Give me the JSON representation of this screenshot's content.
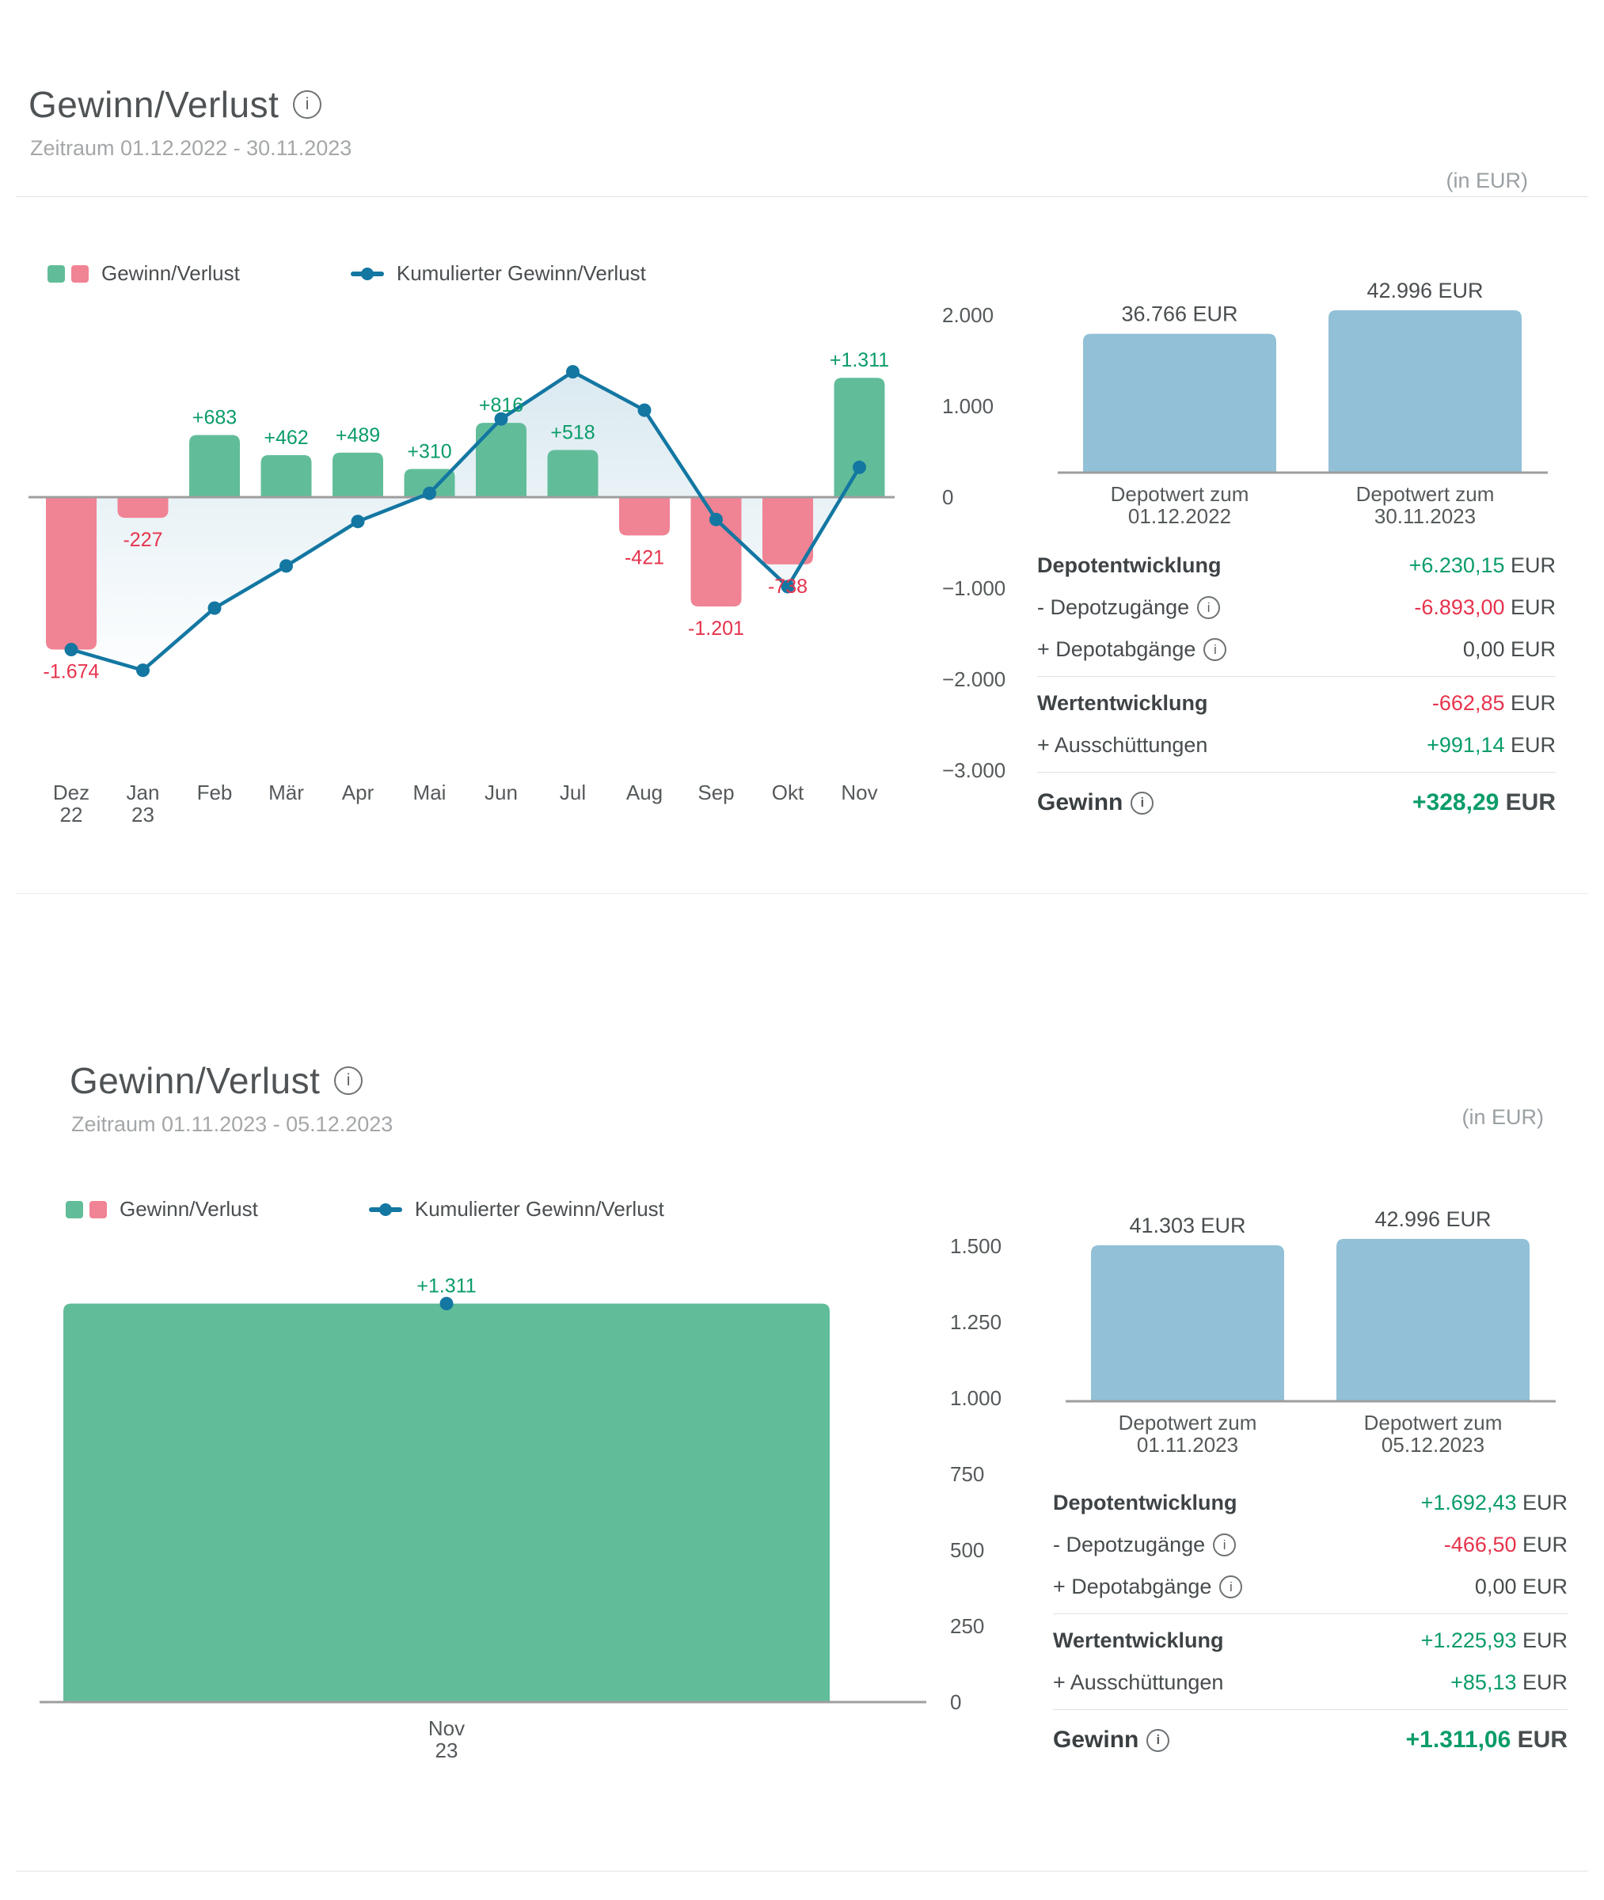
{
  "colors": {
    "bar_positive": "#61bd99",
    "bar_negative": "#f08394",
    "cumulative_line": "#1377a2",
    "depot_bar": "#92c0d6",
    "green_text": "#0a9c68",
    "red_text": "#e6334d",
    "axis_line": "#9e9e9e",
    "tick_text": "#55595b"
  },
  "sections": [
    {
      "header": {
        "title": "Gewinn/Verlust",
        "subtitle": "Zeitraum 01.12.2022 - 30.11.2023",
        "unit_note": "(in EUR)"
      },
      "legend": {
        "bars_label": "Gewinn/Verlust",
        "line_label": "Kumulierter Gewinn/Verlust"
      },
      "table": {
        "rows": [
          {
            "label": "Depotentwicklung",
            "bold": true,
            "value": "+6.230,15",
            "unit": " EUR",
            "color": "green"
          },
          {
            "label": "- Depotzugänge",
            "info": true,
            "value": "-6.893,00",
            "unit": " EUR",
            "color": "red"
          },
          {
            "label": "+ Depotabgänge",
            "info": true,
            "value": "0,00",
            "unit": " EUR",
            "color": "plain"
          },
          {
            "divider": true
          },
          {
            "label": "Wertentwicklung",
            "bold": true,
            "value": "-662,85",
            "unit": " EUR",
            "color": "red"
          },
          {
            "label": "+ Ausschüttungen",
            "value": "+991,14",
            "unit": " EUR",
            "color": "green"
          },
          {
            "divider": true
          },
          {
            "label": "Gewinn",
            "info": true,
            "gewinn": true,
            "value": "+328,29",
            "unit": " EUR",
            "color": "green"
          }
        ]
      }
    },
    {
      "header": {
        "title": "Gewinn/Verlust",
        "subtitle": "Zeitraum 01.11.2023 - 05.12.2023",
        "unit_note": "(in EUR)"
      },
      "legend": {
        "bars_label": "Gewinn/Verlust",
        "line_label": "Kumulierter Gewinn/Verlust"
      },
      "table": {
        "rows": [
          {
            "label": "Depotentwicklung",
            "bold": true,
            "value": "+1.692,43",
            "unit": " EUR",
            "color": "green"
          },
          {
            "label": "- Depotzugänge",
            "info": true,
            "value": "-466,50",
            "unit": " EUR",
            "color": "red"
          },
          {
            "label": "+ Depotabgänge",
            "info": true,
            "value": "0,00",
            "unit": " EUR",
            "color": "plain"
          },
          {
            "divider": true
          },
          {
            "label": "Wertentwicklung",
            "bold": true,
            "value": "+1.225,93",
            "unit": " EUR",
            "color": "green"
          },
          {
            "label": "+ Ausschüttungen",
            "value": "+85,13",
            "unit": " EUR",
            "color": "green"
          },
          {
            "divider": true
          },
          {
            "label": "Gewinn",
            "info": true,
            "gewinn": true,
            "value": "+1.311,06",
            "unit": " EUR",
            "color": "green"
          }
        ]
      }
    }
  ],
  "chart_data": [
    {
      "id": "monthly-2022-2023",
      "type": "bar+line",
      "title": "Gewinn/Verlust Zeitraum 01.12.2022 - 30.11.2023",
      "categories": [
        "Dez 22",
        "Jan 23",
        "Feb",
        "Mär",
        "Apr",
        "Mai",
        "Jun",
        "Jul",
        "Aug",
        "Sep",
        "Okt",
        "Nov"
      ],
      "series": [
        {
          "name": "Gewinn/Verlust",
          "type": "bar",
          "values": [
            -1674,
            -227,
            683,
            462,
            489,
            310,
            816,
            518,
            -421,
            -1201,
            -738,
            1311
          ],
          "labels": [
            "-1.674",
            "-227",
            "+683",
            "+462",
            "+489",
            "+310",
            "+816",
            "+518",
            "-421",
            "-1.201",
            "-738",
            "+1.311"
          ]
        },
        {
          "name": "Kumulierter Gewinn/Verlust",
          "type": "line",
          "values": [
            -1674,
            -1901,
            -1218,
            -756,
            -267,
            43,
            859,
            1377,
            956,
            -245,
            -983,
            328
          ]
        }
      ],
      "y_ticks": [
        2000,
        1000,
        0,
        -1000,
        -2000,
        -3000
      ],
      "y_tick_labels": [
        "2.000",
        "1.000",
        "0",
        "−1.000",
        "−2.000",
        "−3.000"
      ],
      "ylim": [
        -3000,
        2000
      ],
      "grid": false,
      "legend_position": "top-left"
    },
    {
      "id": "depot-2022-2023",
      "type": "bar",
      "categories": [
        "Depotwert zum 01.12.2022",
        "Depotwert zum 30.11.2023"
      ],
      "values": [
        36766,
        42996
      ],
      "value_labels": [
        "36.766 EUR",
        "42.996 EUR"
      ]
    },
    {
      "id": "monthly-2023-11",
      "type": "bar+line",
      "title": "Gewinn/Verlust Zeitraum 01.11.2023 - 05.12.2023",
      "categories": [
        "Nov 23"
      ],
      "series": [
        {
          "name": "Gewinn/Verlust",
          "type": "bar",
          "values": [
            1311
          ],
          "labels": [
            "+1.311"
          ]
        },
        {
          "name": "Kumulierter Gewinn/Verlust",
          "type": "line",
          "values": [
            1311
          ]
        }
      ],
      "y_ticks": [
        1500,
        1250,
        1000,
        750,
        500,
        250,
        0
      ],
      "y_tick_labels": [
        "1.500",
        "1.250",
        "1.000",
        "750",
        "500",
        "250",
        "0"
      ],
      "ylim": [
        0,
        1500
      ],
      "grid": false,
      "legend_position": "top-left"
    },
    {
      "id": "depot-2023-11",
      "type": "bar",
      "categories": [
        "Depotwert zum 01.11.2023",
        "Depotwert zum 05.12.2023"
      ],
      "values": [
        41303,
        42996
      ],
      "value_labels": [
        "41.303 EUR",
        "42.996 EUR"
      ]
    }
  ]
}
